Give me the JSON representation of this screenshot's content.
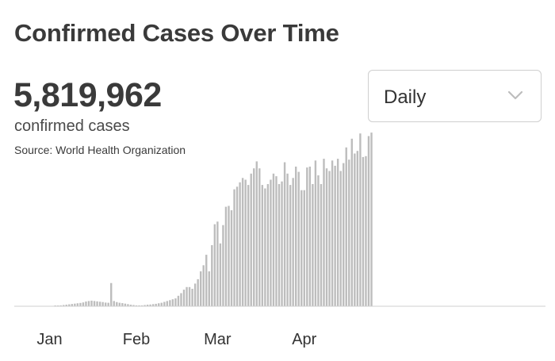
{
  "header": {
    "title": "Confirmed Cases Over Time",
    "total": "5,819,962",
    "subtitle": "confirmed cases",
    "source": "Source:  World Health Organization"
  },
  "dropdown": {
    "selected": "Daily",
    "icon": "chevron-down-icon"
  },
  "colors": {
    "bar": "#bdbdbd",
    "baseline": "#cfcfcf"
  },
  "chart_data": {
    "type": "bar",
    "title": "Confirmed Cases Over Time",
    "xlabel": "",
    "ylabel": "",
    "grid": false,
    "legend": "none",
    "x_ticks": [
      {
        "label": "Jan",
        "day": 12
      },
      {
        "label": "Feb",
        "day": 43
      },
      {
        "label": "Mar",
        "day": 72
      },
      {
        "label": "Apr",
        "day": 103
      }
    ],
    "ylim": [
      0,
      100000
    ],
    "values": [
      0,
      0,
      0,
      0,
      0,
      0,
      0,
      0,
      0,
      0,
      0,
      0,
      0,
      0,
      200,
      300,
      500,
      700,
      900,
      1100,
      1300,
      1500,
      1700,
      1900,
      2200,
      2700,
      3000,
      3200,
      3000,
      2800,
      2600,
      2400,
      2100,
      2000,
      13300,
      3000,
      2400,
      2000,
      1800,
      1500,
      1200,
      900,
      700,
      500,
      500,
      500,
      700,
      900,
      1000,
      1200,
      1400,
      1700,
      2000,
      2500,
      3000,
      3500,
      4000,
      4500,
      6000,
      7500,
      9500,
      11000,
      11000,
      10000,
      13000,
      15500,
      20000,
      23500,
      29500,
      20000,
      35000,
      47000,
      48500,
      36000,
      46500,
      57000,
      57500,
      55000,
      67000,
      68500,
      71000,
      73500,
      72500,
      69500,
      76000,
      79000,
      83000,
      79000,
      69500,
      67500,
      70000,
      72500,
      76000,
      74500,
      70000,
      71500,
      82500,
      76000,
      69500,
      73500,
      80000,
      77000,
      66500,
      66500,
      79500,
      80000,
      70000,
      83500,
      75000,
      70000,
      84500,
      79000,
      77500,
      83500,
      80500,
      84500,
      77500,
      82000,
      91000,
      84000,
      96000,
      87500,
      89000,
      99000,
      85500,
      86000,
      97500,
      99500
    ]
  }
}
